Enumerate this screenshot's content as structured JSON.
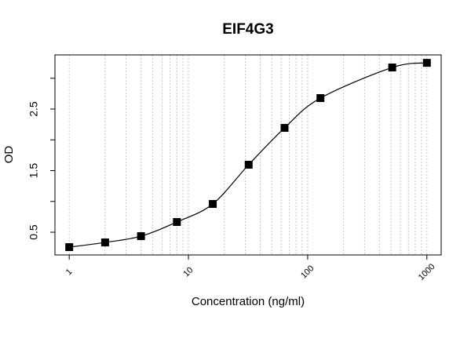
{
  "chart_data": {
    "type": "scatter",
    "title": "EIF4G3",
    "xlabel": "Concentration (ng/ml)",
    "ylabel": "OD",
    "xscale": "log",
    "curve": true,
    "color": "#000000",
    "x": [
      1,
      2,
      4,
      8,
      16,
      32,
      64,
      128,
      512,
      1000
    ],
    "values": [
      0.258,
      0.334,
      0.436,
      0.666,
      0.959,
      1.596,
      2.194,
      2.678,
      3.175,
      3.25
    ],
    "xlim": [
      0.759,
      1318
    ],
    "ylim": [
      0.131,
      3.379
    ],
    "xticks": [
      1,
      10,
      100,
      1000
    ],
    "yticks": [
      0.5,
      1.5,
      2.5
    ],
    "yminor": [
      1,
      2,
      3
    ],
    "xgrid": [
      1,
      2,
      3,
      4,
      5,
      6,
      7,
      8,
      9,
      10,
      20,
      30,
      40,
      50,
      60,
      70,
      80,
      90,
      100,
      200,
      300,
      400,
      500,
      600,
      700,
      800,
      900,
      1000
    ]
  }
}
